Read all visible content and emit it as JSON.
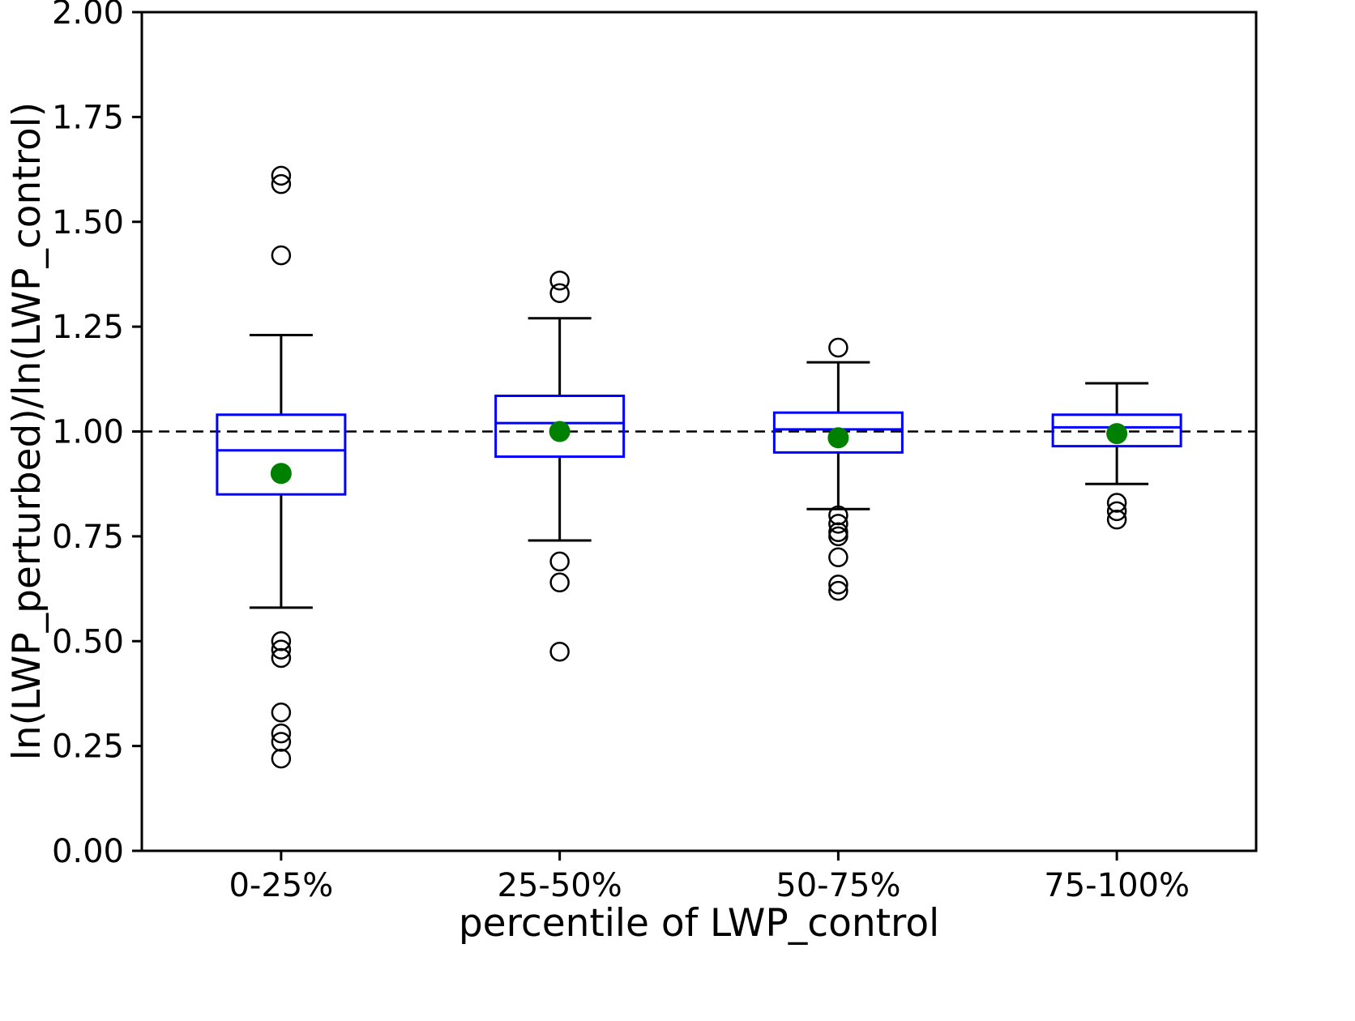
{
  "chart_data": {
    "type": "boxplot",
    "title": "",
    "xlabel": "percentile of LWP_control",
    "ylabel": "ln(LWP_perturbed)/ln(LWP_control)",
    "categories": [
      "0-25%",
      "25-50%",
      "50-75%",
      "75-100%"
    ],
    "ylim": [
      0.0,
      2.0
    ],
    "yticks": [
      0.0,
      0.25,
      0.5,
      0.75,
      1.0,
      1.25,
      1.5,
      1.75,
      2.0
    ],
    "ytick_labels": [
      "0.00",
      "0.25",
      "0.50",
      "0.75",
      "1.00",
      "1.25",
      "1.50",
      "1.75",
      "2.00"
    ],
    "grid": false,
    "legend": "none",
    "reference_line": {
      "y": 1.0,
      "style": "dashed",
      "color": "#000000"
    },
    "series": [
      {
        "category": "0-25%",
        "whisker_low": 0.58,
        "q1": 0.85,
        "median": 0.955,
        "q3": 1.04,
        "whisker_high": 1.23,
        "mean": 0.9,
        "outliers": [
          1.61,
          1.59,
          1.42,
          0.5,
          0.48,
          0.46,
          0.33,
          0.28,
          0.26,
          0.22
        ]
      },
      {
        "category": "25-50%",
        "whisker_low": 0.74,
        "q1": 0.94,
        "median": 1.02,
        "q3": 1.085,
        "whisker_high": 1.27,
        "mean": 1.0,
        "outliers": [
          1.36,
          1.33,
          0.69,
          0.64,
          0.475
        ]
      },
      {
        "category": "50-75%",
        "whisker_low": 0.815,
        "q1": 0.95,
        "median": 1.005,
        "q3": 1.045,
        "whisker_high": 1.165,
        "mean": 0.985,
        "outliers": [
          1.2,
          0.8,
          0.78,
          0.76,
          0.75,
          0.7,
          0.635,
          0.62
        ]
      },
      {
        "category": "75-100%",
        "whisker_low": 0.875,
        "q1": 0.965,
        "median": 1.01,
        "q3": 1.04,
        "whisker_high": 1.115,
        "mean": 0.995,
        "outliers": [
          0.83,
          0.81,
          0.79
        ]
      }
    ],
    "colors": {
      "box": "#0000ff",
      "median": "#0000ff",
      "whisker": "#000000",
      "cap": "#000000",
      "outlier": "#000000",
      "mean": "#008000",
      "axis": "#000000",
      "background": "#ffffff"
    }
  }
}
